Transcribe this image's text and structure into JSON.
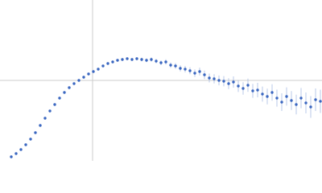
{
  "chart_data": {
    "type": "scatter",
    "xlim": [
      0,
      4
    ],
    "ylim": [
      -1,
      1
    ],
    "ref_x": 1.15,
    "ref_y": 0,
    "color": "#3a66c0",
    "error_color": "#a9bde3",
    "ref_color": "#cccccc",
    "x": [
      0.14,
      0.2,
      0.26,
      0.32,
      0.38,
      0.44,
      0.5,
      0.56,
      0.62,
      0.68,
      0.74,
      0.8,
      0.86,
      0.92,
      0.98,
      1.04,
      1.1,
      1.16,
      1.22,
      1.28,
      1.34,
      1.4,
      1.46,
      1.52,
      1.58,
      1.64,
      1.7,
      1.76,
      1.82,
      1.88,
      1.94,
      2.0,
      2.06,
      2.12,
      2.18,
      2.24,
      2.3,
      2.36,
      2.42,
      2.48,
      2.54,
      2.6,
      2.66,
      2.72,
      2.78,
      2.84,
      2.9,
      2.96,
      3.02,
      3.08,
      3.14,
      3.2,
      3.26,
      3.32,
      3.38,
      3.44,
      3.5,
      3.56,
      3.62,
      3.68,
      3.74,
      3.8,
      3.86,
      3.92,
      3.98
    ],
    "series": [
      {
        "values": [
          -0.95,
          -0.91,
          -0.86,
          -0.8,
          -0.73,
          -0.65,
          -0.56,
          -0.47,
          -0.38,
          -0.3,
          -0.22,
          -0.15,
          -0.09,
          -0.04,
          0.0,
          0.04,
          0.08,
          0.11,
          0.14,
          0.18,
          0.21,
          0.23,
          0.25,
          0.26,
          0.27,
          0.26,
          0.27,
          0.26,
          0.25,
          0.26,
          0.24,
          0.22,
          0.23,
          0.19,
          0.18,
          0.15,
          0.14,
          0.12,
          0.09,
          0.11,
          0.07,
          0.03,
          0.02,
          0.0,
          -0.01,
          -0.04,
          -0.02,
          -0.07,
          -0.1,
          -0.06,
          -0.13,
          -0.12,
          -0.17,
          -0.2,
          -0.15,
          -0.22,
          -0.27,
          -0.2,
          -0.25,
          -0.3,
          -0.22,
          -0.28,
          -0.33,
          -0.24,
          -0.26
        ],
        "errors": [
          0.004,
          0.004,
          0.004,
          0.004,
          0.004,
          0.004,
          0.004,
          0.004,
          0.004,
          0.004,
          0.005,
          0.005,
          0.005,
          0.006,
          0.006,
          0.007,
          0.008,
          0.009,
          0.01,
          0.011,
          0.012,
          0.013,
          0.014,
          0.015,
          0.016,
          0.018,
          0.02,
          0.022,
          0.024,
          0.026,
          0.028,
          0.03,
          0.032,
          0.034,
          0.036,
          0.038,
          0.04,
          0.043,
          0.046,
          0.049,
          0.052,
          0.055,
          0.058,
          0.061,
          0.064,
          0.067,
          0.07,
          0.074,
          0.078,
          0.082,
          0.086,
          0.09,
          0.094,
          0.098,
          0.102,
          0.106,
          0.11,
          0.114,
          0.118,
          0.122,
          0.126,
          0.13,
          0.135,
          0.14,
          0.145
        ]
      }
    ]
  }
}
